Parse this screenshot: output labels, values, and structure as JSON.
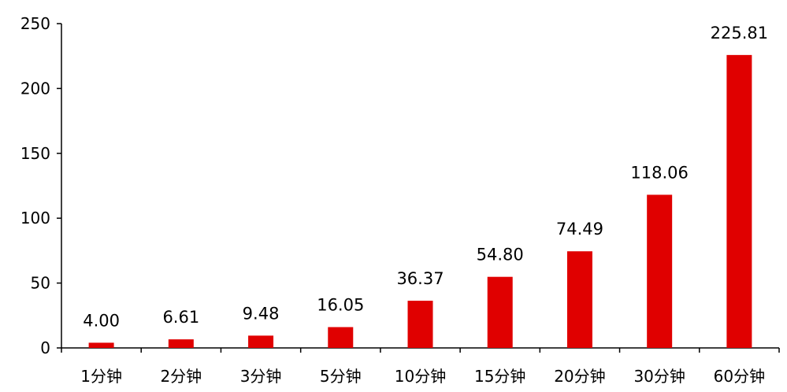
{
  "chart_data": {
    "type": "bar",
    "title": "",
    "xlabel": "",
    "ylabel": "",
    "categories": [
      "1分钟",
      "2分钟",
      "3分钟",
      "5分钟",
      "10分钟",
      "15分钟",
      "20分钟",
      "30分钟",
      "60分钟"
    ],
    "values": [
      4.0,
      6.61,
      9.48,
      16.05,
      36.37,
      54.8,
      74.49,
      118.06,
      225.81
    ],
    "value_labels": [
      "4.00",
      "6.61",
      "9.48",
      "16.05",
      "36.37",
      "54.80",
      "74.49",
      "118.06",
      "225.81"
    ],
    "ylim": [
      0,
      250
    ],
    "yticks": [
      0,
      50,
      100,
      150,
      200,
      250
    ],
    "grid": false,
    "legend": "none",
    "bar_color": "#E00000"
  }
}
